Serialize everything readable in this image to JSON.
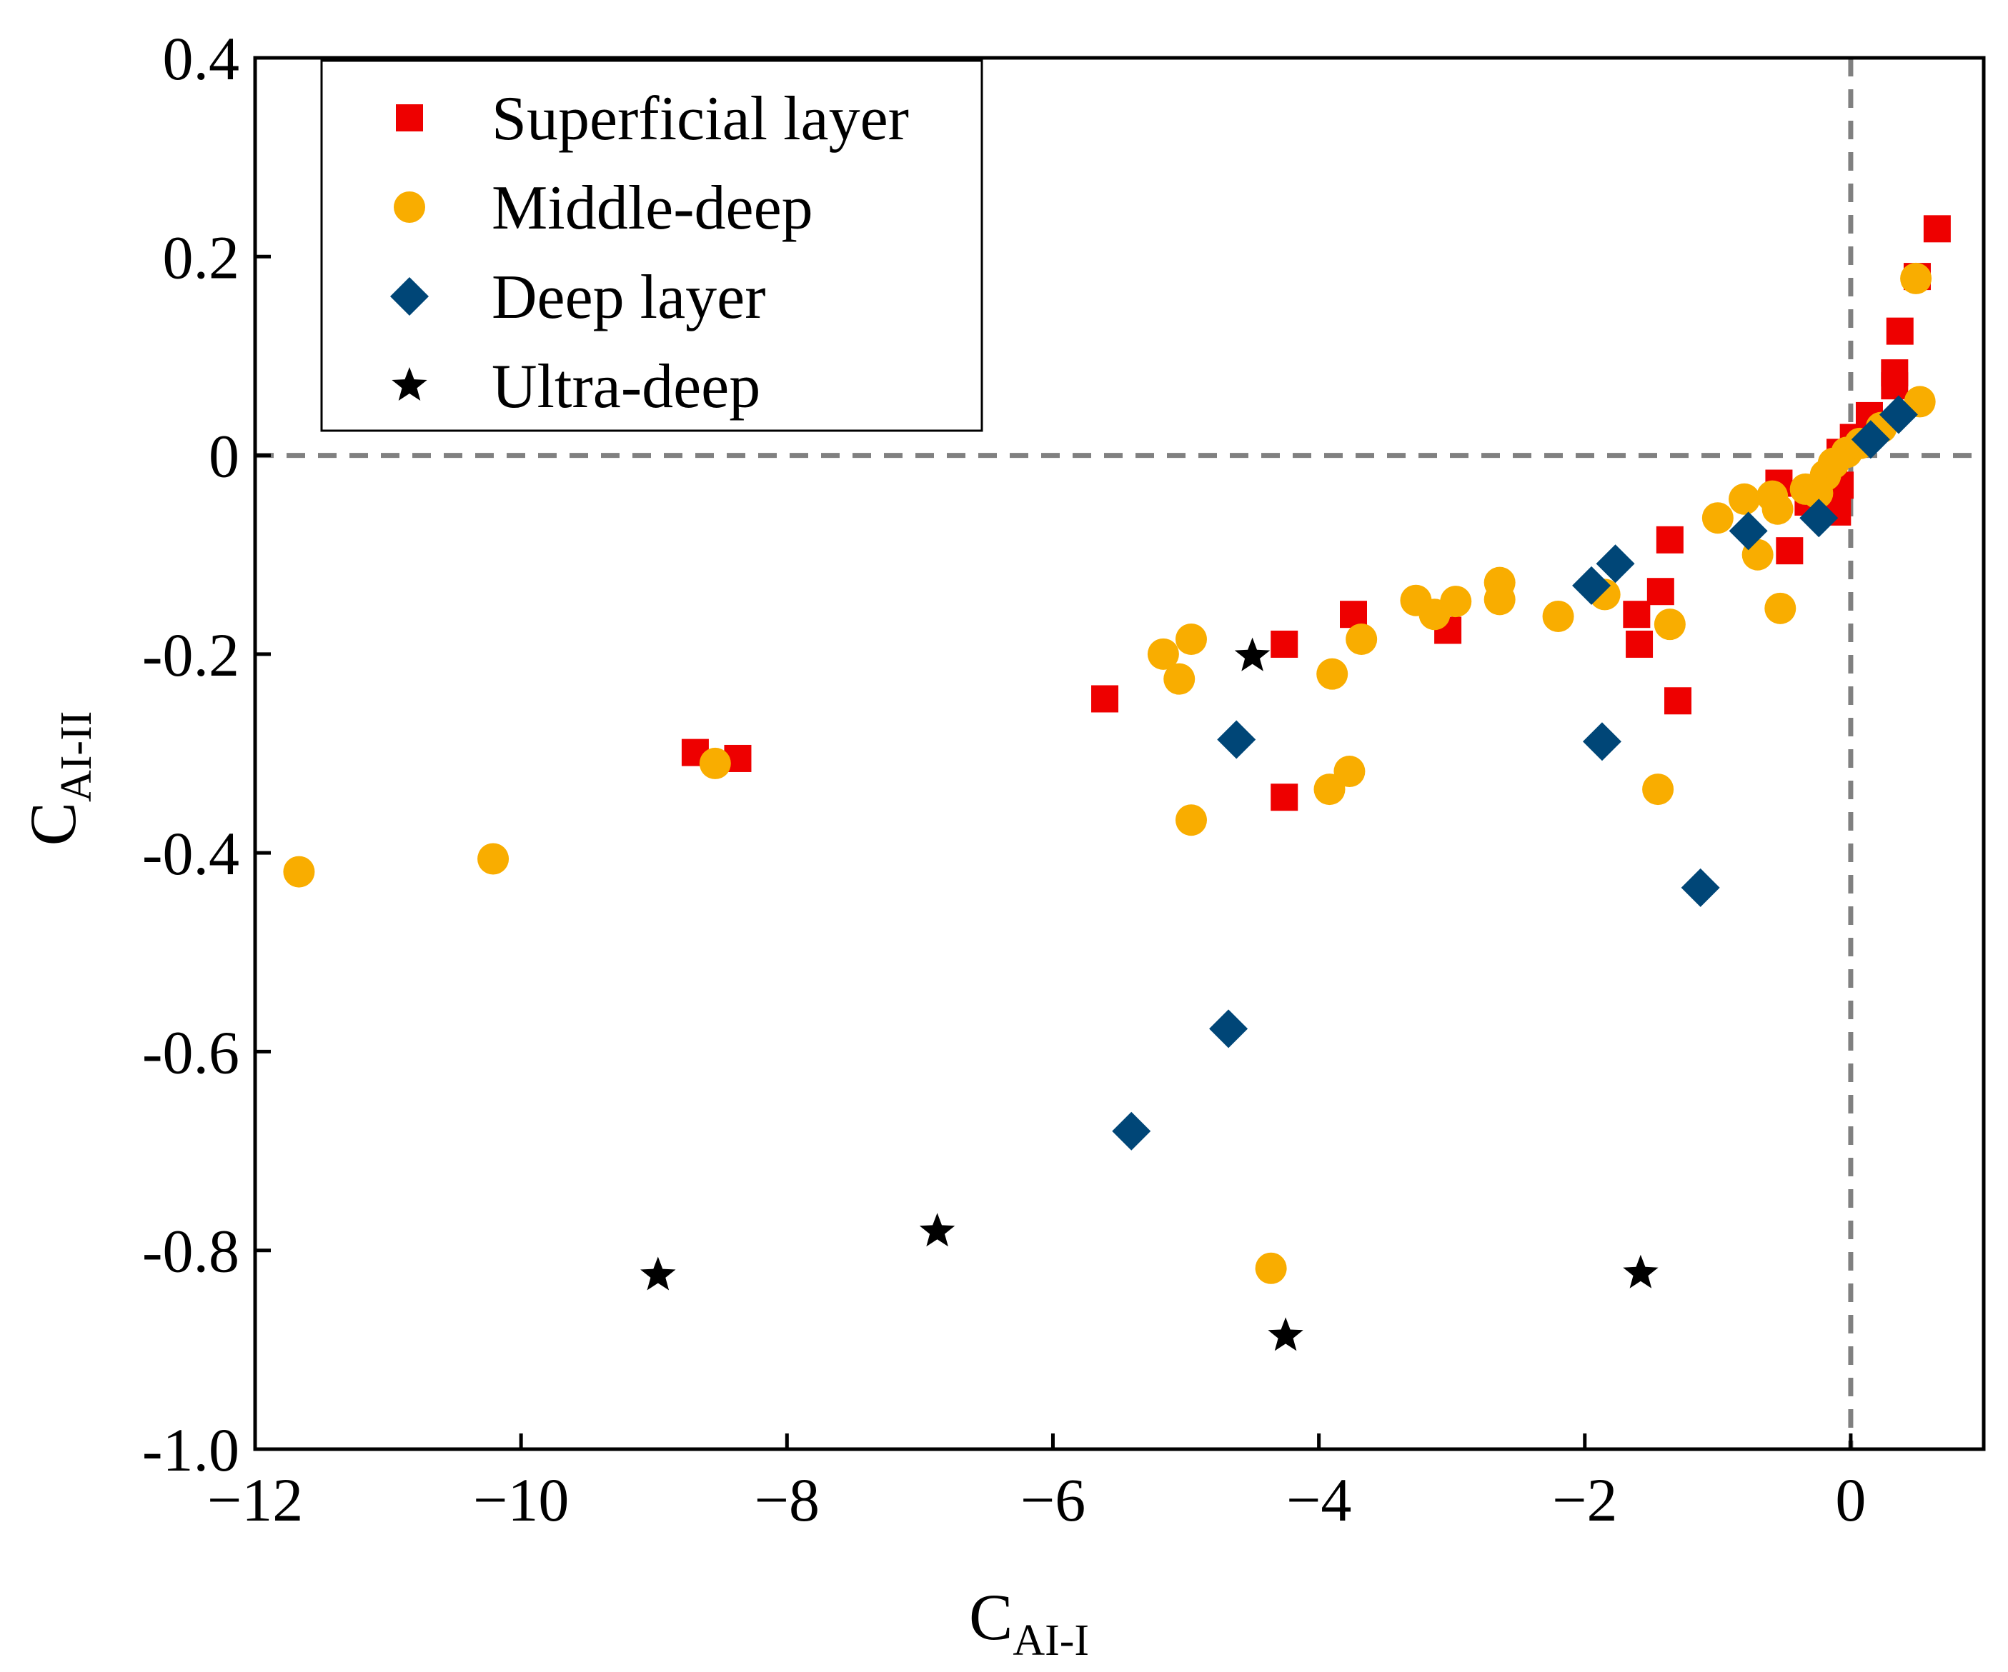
{
  "chart_data": {
    "type": "scatter",
    "title": "",
    "xlabel": "C",
    "xlabel_sub": "AI-I",
    "ylabel": "C",
    "ylabel_sub": "AI-II",
    "xlim": [
      -12,
      1
    ],
    "ylim": [
      -1.0,
      0.4
    ],
    "xticks": [
      -12,
      -10,
      -8,
      -6,
      -4,
      -2,
      0
    ],
    "xtick_labels": [
      "−12",
      "−10",
      "−8",
      "−6",
      "−4",
      "−2",
      "0"
    ],
    "yticks": [
      0.4,
      0.2,
      0,
      -0.2,
      -0.4,
      -0.6,
      -0.8,
      -1.0
    ],
    "ytick_labels": [
      "0.4",
      "0.2",
      "0",
      "-0.2",
      "-0.4",
      "-0.6",
      "-0.8",
      "-1.0"
    ],
    "grid": false,
    "reference_lines": {
      "x": 0,
      "y": 0,
      "style": "dashed",
      "color": "#808080"
    },
    "legend_position": "top-left",
    "series": [
      {
        "name": "Superficial layer",
        "marker": "square",
        "color": "#ee0000",
        "points": [
          [
            0.65,
            0.228
          ],
          [
            0.5,
            0.18
          ],
          [
            0.37,
            0.125
          ],
          [
            0.33,
            0.083
          ],
          [
            0.33,
            0.07
          ],
          [
            0.14,
            0.04
          ],
          [
            0.02,
            0.018
          ],
          [
            -0.08,
            0.003
          ],
          [
            -0.13,
            -0.015
          ],
          [
            -0.08,
            -0.03
          ],
          [
            -0.1,
            -0.057
          ],
          [
            -0.32,
            -0.047
          ],
          [
            -0.54,
            -0.028
          ],
          [
            -0.46,
            -0.096
          ],
          [
            -1.36,
            -0.085
          ],
          [
            -1.43,
            -0.137
          ],
          [
            -1.61,
            -0.16
          ],
          [
            -1.59,
            -0.19
          ],
          [
            -1.3,
            -0.247
          ],
          [
            -3.03,
            -0.176
          ],
          [
            -3.74,
            -0.16
          ],
          [
            -4.26,
            -0.19
          ],
          [
            -4.26,
            -0.344
          ],
          [
            -5.61,
            -0.245
          ],
          [
            -8.69,
            -0.299
          ],
          [
            -8.37,
            -0.305
          ]
        ]
      },
      {
        "name": "Middle-deep",
        "marker": "circle",
        "color": "#f9ad00",
        "points": [
          [
            -11.67,
            -0.419
          ],
          [
            -10.21,
            -0.406
          ],
          [
            -8.54,
            -0.31
          ],
          [
            -5.17,
            -0.2
          ],
          [
            -4.96,
            -0.185
          ],
          [
            -5.05,
            -0.225
          ],
          [
            -4.96,
            -0.367
          ],
          [
            -4.36,
            -0.818
          ],
          [
            -3.9,
            -0.22
          ],
          [
            -3.92,
            -0.336
          ],
          [
            -3.77,
            -0.318
          ],
          [
            -3.68,
            -0.185
          ],
          [
            -3.27,
            -0.146
          ],
          [
            -3.13,
            -0.16
          ],
          [
            -2.97,
            -0.147
          ],
          [
            -2.64,
            -0.128
          ],
          [
            -2.64,
            -0.145
          ],
          [
            -2.2,
            -0.162
          ],
          [
            -1.85,
            -0.14
          ],
          [
            -1.36,
            -0.17
          ],
          [
            -1.45,
            -0.336
          ],
          [
            -1.0,
            -0.063
          ],
          [
            -0.8,
            -0.044
          ],
          [
            -0.7,
            -0.1
          ],
          [
            -0.59,
            -0.041
          ],
          [
            -0.55,
            -0.054
          ],
          [
            -0.53,
            -0.154
          ],
          [
            -0.34,
            -0.034
          ],
          [
            -0.25,
            -0.038
          ],
          [
            -0.19,
            -0.02
          ],
          [
            -0.13,
            -0.008
          ],
          [
            -0.03,
            0.003
          ],
          [
            0.07,
            0.012
          ],
          [
            0.23,
            0.028
          ],
          [
            0.52,
            0.054
          ],
          [
            0.49,
            0.178
          ]
        ]
      },
      {
        "name": "Deep layer",
        "marker": "diamond",
        "color": "#004677",
        "points": [
          [
            -5.41,
            -0.68
          ],
          [
            -4.68,
            -0.577
          ],
          [
            -4.62,
            -0.286
          ],
          [
            -1.95,
            -0.131
          ],
          [
            -1.77,
            -0.109
          ],
          [
            -1.87,
            -0.288
          ],
          [
            -1.13,
            -0.435
          ],
          [
            -0.77,
            -0.076
          ],
          [
            -0.24,
            -0.063
          ],
          [
            0.15,
            0.016
          ],
          [
            0.36,
            0.041
          ]
        ]
      },
      {
        "name": "Ultra-deep",
        "marker": "star",
        "color": "#000000",
        "points": [
          [
            -8.97,
            -0.825
          ],
          [
            -6.87,
            -0.781
          ],
          [
            -4.5,
            -0.202
          ],
          [
            -4.25,
            -0.886
          ],
          [
            -1.58,
            -0.823
          ]
        ]
      }
    ]
  }
}
